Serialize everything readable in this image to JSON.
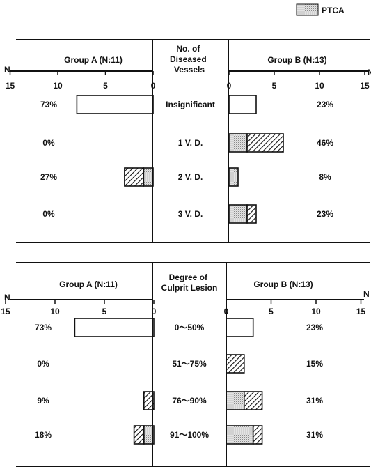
{
  "legend": {
    "label": "PTCA",
    "position": "top-right"
  },
  "chart_data": [
    {
      "type": "bar",
      "orientation": "horizontal-butterfly",
      "center_header": "No. of\nDiseased\nVessels",
      "axis_label": "N",
      "left_group": "Group A (N:11)",
      "right_group": "Group B (N:13)",
      "ticks": [
        15,
        10,
        5,
        0
      ],
      "xlim": [
        0,
        15
      ],
      "categories": [
        "Insignificant",
        "1 V. D.",
        "2 V. D.",
        "3 V. D."
      ],
      "left_percent_labels": [
        "73%",
        "0%",
        "27%",
        "0%"
      ],
      "right_percent_labels": [
        "23%",
        "46%",
        "8%",
        "23%"
      ],
      "series": [
        {
          "side": "left",
          "kind": "plain",
          "values": [
            8,
            0,
            0,
            0
          ]
        },
        {
          "side": "left",
          "kind": "ptca",
          "values": [
            0,
            0,
            1,
            0
          ]
        },
        {
          "side": "left",
          "kind": "hatched",
          "values": [
            0,
            0,
            2,
            0
          ]
        },
        {
          "side": "right",
          "kind": "plain",
          "values": [
            3,
            0,
            0,
            0
          ]
        },
        {
          "side": "right",
          "kind": "ptca",
          "values": [
            0,
            2,
            1,
            2
          ]
        },
        {
          "side": "right",
          "kind": "hatched",
          "values": [
            0,
            4,
            0,
            1
          ]
        }
      ]
    },
    {
      "type": "bar",
      "orientation": "horizontal-butterfly",
      "center_header": "Degree of\nCulprit Lesion",
      "axis_label": "N",
      "left_group": "Group A (N:11)",
      "right_group": "Group B (N:13)",
      "ticks": [
        15,
        10,
        5,
        0
      ],
      "xlim": [
        0,
        15
      ],
      "categories": [
        "0〜50%",
        "51〜75%",
        "76〜90%",
        "91〜100%"
      ],
      "left_percent_labels": [
        "73%",
        "0%",
        "9%",
        "18%"
      ],
      "right_percent_labels": [
        "23%",
        "15%",
        "31%",
        "31%"
      ],
      "series": [
        {
          "side": "left",
          "kind": "plain",
          "values": [
            8,
            0,
            0,
            0
          ]
        },
        {
          "side": "left",
          "kind": "ptca",
          "values": [
            0,
            0,
            0,
            1
          ]
        },
        {
          "side": "left",
          "kind": "hatched",
          "values": [
            0,
            0,
            1,
            1
          ]
        },
        {
          "side": "right",
          "kind": "plain",
          "values": [
            3,
            0,
            0,
            0
          ]
        },
        {
          "side": "right",
          "kind": "ptca",
          "values": [
            0,
            0,
            2,
            3
          ]
        },
        {
          "side": "right",
          "kind": "hatched",
          "values": [
            0,
            2,
            2,
            1
          ]
        }
      ]
    }
  ]
}
